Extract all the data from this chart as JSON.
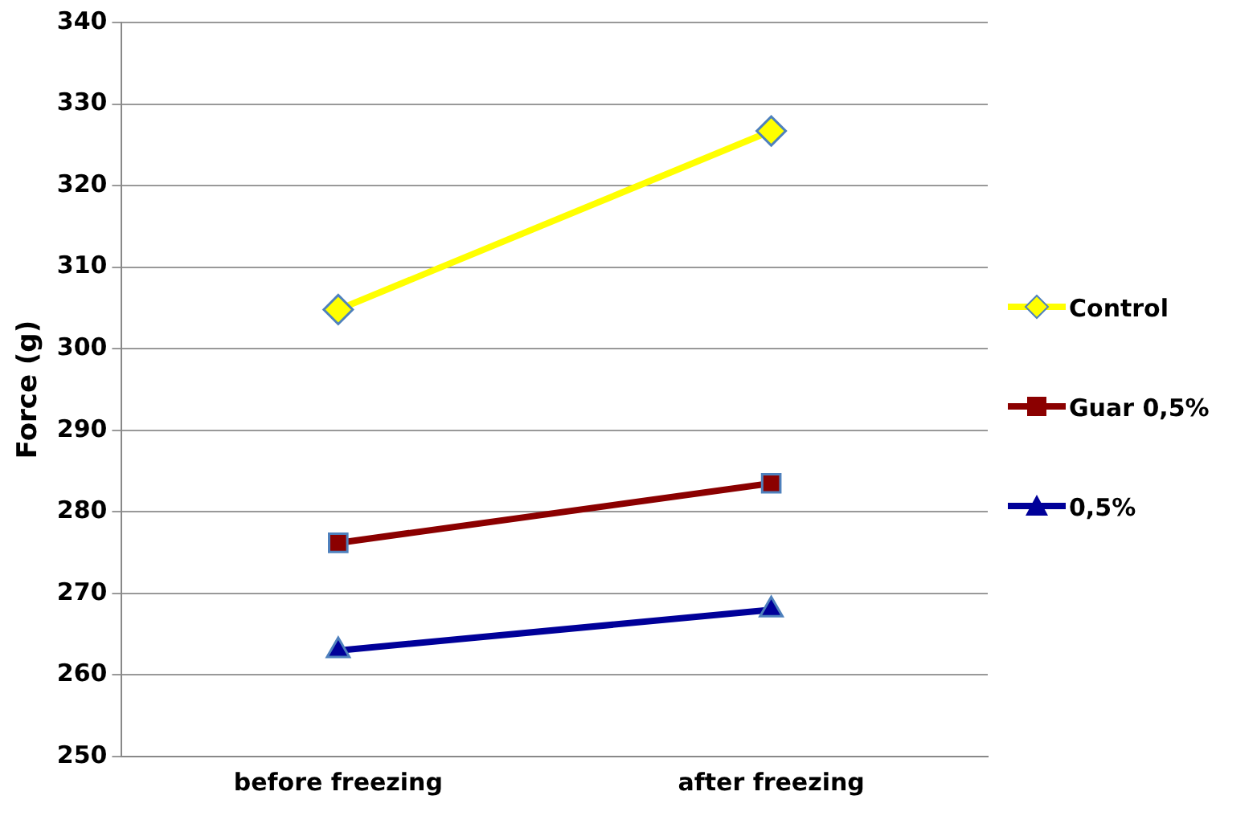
{
  "chart_data": {
    "type": "line",
    "ylabel": "Force (g)",
    "categories": [
      "before freezing",
      "after freezing"
    ],
    "ylim": [
      250,
      340
    ],
    "yticks": [
      250,
      260,
      270,
      280,
      290,
      300,
      310,
      320,
      330,
      340
    ],
    "grid": "y",
    "legend": "right",
    "series": [
      {
        "name": "Control",
        "color": "#ffff00",
        "marker": "diamond",
        "values": [
          304.8,
          326.7
        ]
      },
      {
        "name": "Guar 0,5%",
        "color": "#8b0000",
        "marker": "square",
        "values": [
          276.2,
          283.5
        ]
      },
      {
        "name": "0,5%",
        "color": "#000099",
        "marker": "triangle",
        "values": [
          263,
          268
        ]
      }
    ]
  }
}
